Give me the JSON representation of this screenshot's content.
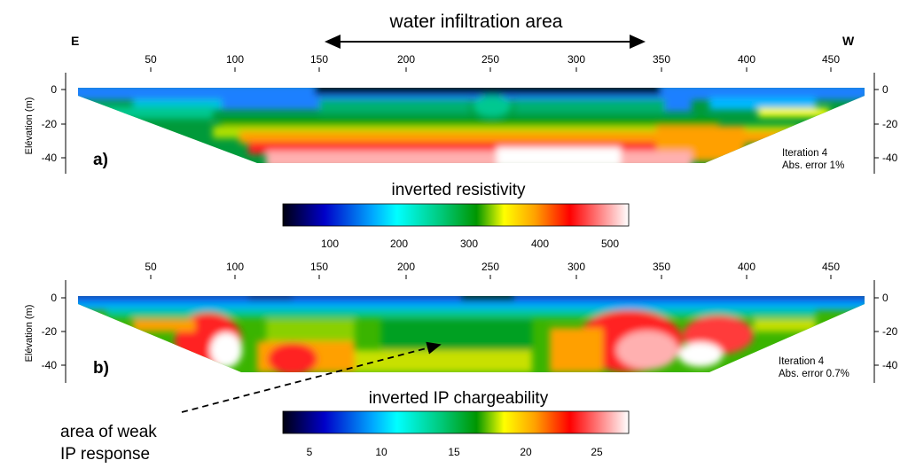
{
  "header": {
    "title": "water infiltration area",
    "left_dir": "E",
    "right_dir": "W"
  },
  "x_ticks": [
    "50",
    "100",
    "150",
    "200",
    "250",
    "300",
    "350",
    "400",
    "450"
  ],
  "depth_ticks": [
    "0",
    "-20",
    "-40"
  ],
  "y_axis_label": "Elévation (m)",
  "panel_a": {
    "label": "a)",
    "iteration": "Iteration 4",
    "error": "Abs. error 1%"
  },
  "panel_b": {
    "label": "b)",
    "iteration": "Iteration 4",
    "error": "Abs. error 0.7%"
  },
  "colorbar_a": {
    "title": "inverted resistivity",
    "ticks": [
      "100",
      "200",
      "300",
      "400",
      "500"
    ]
  },
  "colorbar_b": {
    "title": "inverted IP chargeability",
    "ticks": [
      "5",
      "10",
      "15",
      "20",
      "25"
    ]
  },
  "annotation": {
    "line1": "area of weak",
    "line2": "IP response"
  },
  "colors": {
    "colormap": [
      "#000010",
      "#0000c8",
      "#00a8ff",
      "#00ffff",
      "#00c878",
      "#009600",
      "#ffff00",
      "#ffa000",
      "#ff0000",
      "#ffffff"
    ]
  }
}
